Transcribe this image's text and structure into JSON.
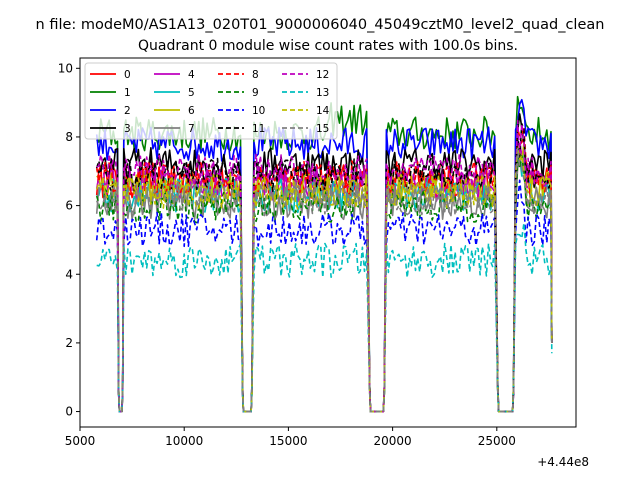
{
  "figure": {
    "suptitle": "n file: modeM0/AS1A13_020T01_9000006040_45049cztM0_level2_quad_clean",
    "title": "Quadrant 0 module wise count rates with 100.0s bins.",
    "offset_label": "+4.44e8"
  },
  "chart_data": {
    "type": "line",
    "title": "Quadrant 0 module wise count rates with 100.0s bins.",
    "xlabel": "",
    "ylabel": "",
    "x_offset": 444000000,
    "xlim": [
      5000,
      28800
    ],
    "ylim": [
      -0.45,
      10.3
    ],
    "xticks": [
      5000,
      10000,
      15000,
      20000,
      25000
    ],
    "xtick_labels": [
      "5000",
      "10000",
      "15000",
      "20000",
      "25000"
    ],
    "yticks": [
      0,
      2,
      4,
      6,
      8,
      10
    ],
    "ytick_labels": [
      "0",
      "2",
      "4",
      "6",
      "8",
      "10"
    ],
    "grid": false,
    "legend_position": "upper-left",
    "segments": [
      {
        "x_start": 5800,
        "x_end": 6800,
        "gap_start": 6850,
        "gap_end": 7050
      },
      {
        "x_start": 7100,
        "x_end": 12700,
        "gap_start": 12800,
        "gap_end": 13250
      },
      {
        "x_start": 13350,
        "x_end": 18800,
        "gap_start": 18900,
        "gap_end": 19600
      },
      {
        "x_start": 19700,
        "x_end": 24900,
        "gap_start": 25050,
        "gap_end": 25800
      },
      {
        "x_start": 25900,
        "x_end": 27600,
        "gap_start": null,
        "gap_end": null
      }
    ],
    "series": [
      {
        "name": "0",
        "color": "#ff0000",
        "dash": "solid",
        "level": 6.7
      },
      {
        "name": "1",
        "color": "#008000",
        "dash": "solid",
        "level": 8.1
      },
      {
        "name": "2",
        "color": "#0000ff",
        "dash": "solid",
        "level": 7.8
      },
      {
        "name": "3",
        "color": "#000000",
        "dash": "solid",
        "level": 7.2
      },
      {
        "name": "4",
        "color": "#bf00bf",
        "dash": "solid",
        "level": 6.6
      },
      {
        "name": "5",
        "color": "#00bfbf",
        "dash": "solid",
        "level": 6.3
      },
      {
        "name": "6",
        "color": "#bfbf00",
        "dash": "solid",
        "level": 6.5
      },
      {
        "name": "7",
        "color": "#808080",
        "dash": "solid",
        "level": 6.1
      },
      {
        "name": "8",
        "color": "#ff0000",
        "dash": "dashed",
        "level": 6.8
      },
      {
        "name": "9",
        "color": "#008000",
        "dash": "dashed",
        "level": 6.0
      },
      {
        "name": "10",
        "color": "#0000ff",
        "dash": "dashed",
        "level": 5.3
      },
      {
        "name": "11",
        "color": "#000000",
        "dash": "dashed",
        "level": 6.9
      },
      {
        "name": "12",
        "color": "#bf00bf",
        "dash": "dashed",
        "level": 7.0
      },
      {
        "name": "13",
        "color": "#00bfbf",
        "dash": "dashed",
        "level": 4.4
      },
      {
        "name": "14",
        "color": "#bfbf00",
        "dash": "dashed",
        "level": 6.4
      },
      {
        "name": "15",
        "color": "#808080",
        "dash": "dashed",
        "level": 6.2
      }
    ]
  }
}
